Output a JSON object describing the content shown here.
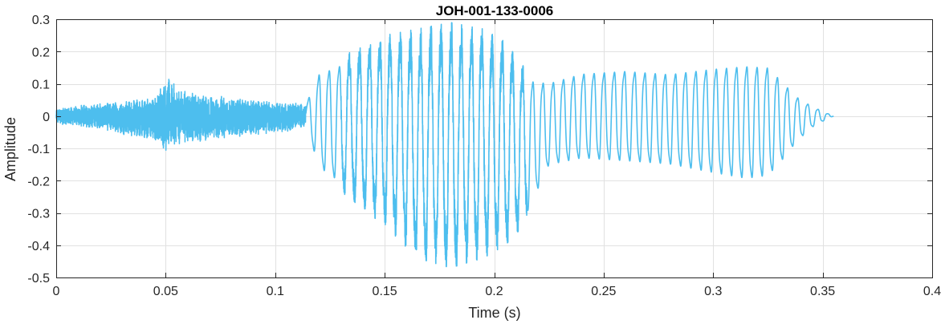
{
  "chart_data": {
    "type": "line",
    "title": "JOH-001-133-0006",
    "xlabel": "Time (s)",
    "ylabel": "Amplitude",
    "xlim": [
      0,
      0.4
    ],
    "ylim": [
      -0.5,
      0.3
    ],
    "grid": true,
    "x_ticks": [
      0,
      0.05,
      0.1,
      0.15,
      0.2,
      0.25,
      0.3,
      0.35,
      0.4
    ],
    "x_tick_labels": [
      "0",
      "0.05",
      "0.1",
      "0.15",
      "0.2",
      "0.25",
      "0.3",
      "0.35",
      "0.4"
    ],
    "y_ticks": [
      0.3,
      0.2,
      0.1,
      0,
      -0.1,
      -0.2,
      -0.3,
      -0.4,
      -0.5
    ],
    "y_tick_labels": [
      "0.3",
      "0.2",
      "0.1",
      "0",
      "-0.1",
      "-0.2",
      "-0.3",
      "-0.4",
      "-0.5"
    ],
    "line_color": "#4DBEEE",
    "signal_end_s": 0.355,
    "envelope": {
      "t": [
        0,
        0.02,
        0.045,
        0.05,
        0.055,
        0.065,
        0.09,
        0.105,
        0.114,
        0.12,
        0.135,
        0.15,
        0.165,
        0.18,
        0.195,
        0.205,
        0.215,
        0.225,
        0.24,
        0.26,
        0.28,
        0.3,
        0.315,
        0.325,
        0.332,
        0.338,
        0.345,
        0.352,
        0.355
      ],
      "upper": [
        0.025,
        0.04,
        0.06,
        0.13,
        0.09,
        0.07,
        0.05,
        0.04,
        0.04,
        0.15,
        0.2,
        0.25,
        0.27,
        0.29,
        0.27,
        0.23,
        0.14,
        0.12,
        0.15,
        0.16,
        0.15,
        0.17,
        0.18,
        0.175,
        0.12,
        0.07,
        0.035,
        0.01,
        0.0
      ],
      "lower": [
        -0.025,
        -0.04,
        -0.08,
        -0.11,
        -0.09,
        -0.08,
        -0.06,
        -0.05,
        -0.03,
        -0.18,
        -0.26,
        -0.34,
        -0.44,
        -0.47,
        -0.44,
        -0.4,
        -0.33,
        -0.17,
        -0.15,
        -0.16,
        -0.17,
        -0.2,
        -0.22,
        -0.21,
        -0.15,
        -0.09,
        -0.04,
        -0.01,
        0.0
      ]
    }
  }
}
